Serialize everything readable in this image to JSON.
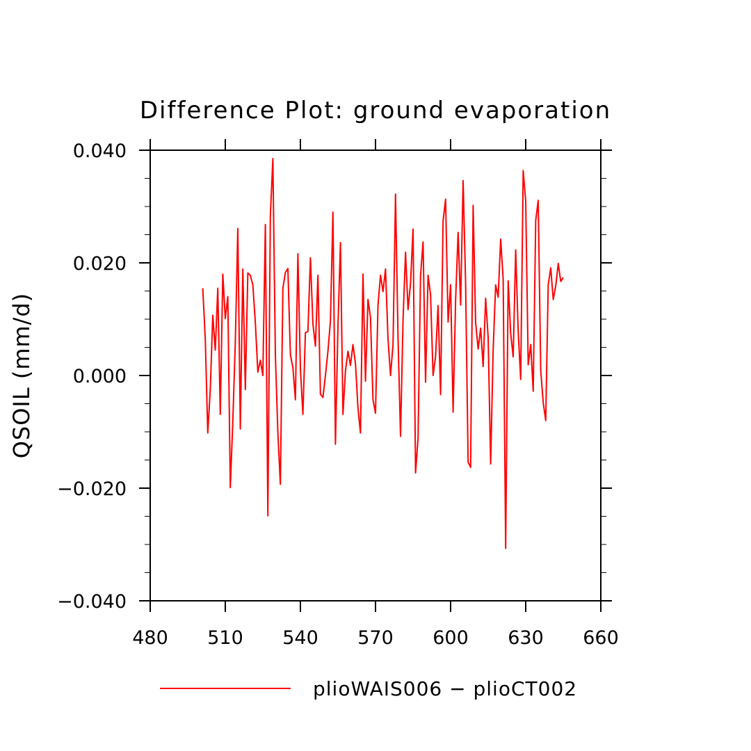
{
  "chart_data": {
    "type": "line",
    "title": "Difference Plot: ground evaporation",
    "xlabel": "",
    "ylabel": "QSOIL  (mm/d)",
    "xlim": [
      480,
      660
    ],
    "ylim": [
      -0.04,
      0.04
    ],
    "x_ticks": [
      480,
      510,
      540,
      570,
      600,
      630,
      660
    ],
    "x_tick_labels": [
      "480",
      "510",
      "540",
      "570",
      "600",
      "630",
      "660"
    ],
    "y_ticks": [
      -0.04,
      -0.02,
      0.0,
      0.02,
      0.04
    ],
    "y_tick_labels": [
      "−0.040",
      "−0.020",
      "0.000",
      "0.020",
      "0.040"
    ],
    "y_minor_step": 0.005,
    "grid": false,
    "legend_position": "bottom",
    "series": [
      {
        "name": "plioWAIS006 − plioCT002",
        "color": "#ff0000",
        "x_start": 501,
        "x_step": 1,
        "values": [
          0.0155,
          0.0065,
          -0.0102,
          -0.0025,
          0.0107,
          0.0045,
          0.0155,
          -0.0069,
          0.018,
          0.0101,
          0.014,
          -0.0199,
          -0.0082,
          0.0059,
          0.0261,
          -0.0095,
          0.0189,
          -0.0025,
          0.0182,
          0.0178,
          0.0161,
          0.0094,
          0.0006,
          0.0027,
          0.0,
          0.0268,
          -0.0249,
          0.0283,
          0.0385,
          0.0037,
          -0.0102,
          -0.0193,
          0.0155,
          0.0183,
          0.019,
          0.0037,
          0.0014,
          -0.0043,
          0.0216,
          0.0012,
          -0.0069,
          0.0076,
          0.0078,
          0.0209,
          0.0092,
          0.0052,
          0.0178,
          -0.0033,
          -0.0039,
          0.0,
          0.0043,
          0.0097,
          0.029,
          -0.0122,
          0.0086,
          0.0236,
          -0.0069,
          0.0008,
          0.0043,
          0.0018,
          0.0055,
          0.0021,
          -0.0058,
          -0.0102,
          0.018,
          -0.001,
          0.0135,
          0.0103,
          -0.0043,
          -0.0067,
          0.0125,
          0.0178,
          0.0149,
          0.0189,
          0.0065,
          0.0,
          0.0055,
          0.0322,
          0.0068,
          -0.0108,
          0.0099,
          0.0219,
          0.0117,
          0.0164,
          0.026,
          -0.0173,
          -0.0111,
          0.0178,
          0.0237,
          -0.0012,
          0.0178,
          0.0143,
          0.0,
          0.0034,
          0.0124,
          -0.0034,
          0.0275,
          0.0313,
          0.0095,
          0.0161,
          -0.0065,
          0.0134,
          0.0254,
          0.0125,
          0.0346,
          0.0163,
          -0.0154,
          -0.0163,
          0.0302,
          0.0094,
          0.0047,
          0.0084,
          0.0016,
          0.0137,
          0.0068,
          -0.0157,
          0.0046,
          0.0161,
          0.0139,
          0.0242,
          0.0171,
          -0.0307,
          0.0168,
          0.0075,
          0.0033,
          0.0223,
          0.0079,
          -0.0007,
          0.0364,
          0.031,
          0.0019,
          0.0055,
          -0.0028,
          0.0275,
          0.0311,
          0.0009,
          -0.0048,
          -0.008,
          0.0161,
          0.0191,
          0.0135,
          0.0159,
          0.0199,
          0.0167,
          0.0174
        ]
      }
    ]
  }
}
